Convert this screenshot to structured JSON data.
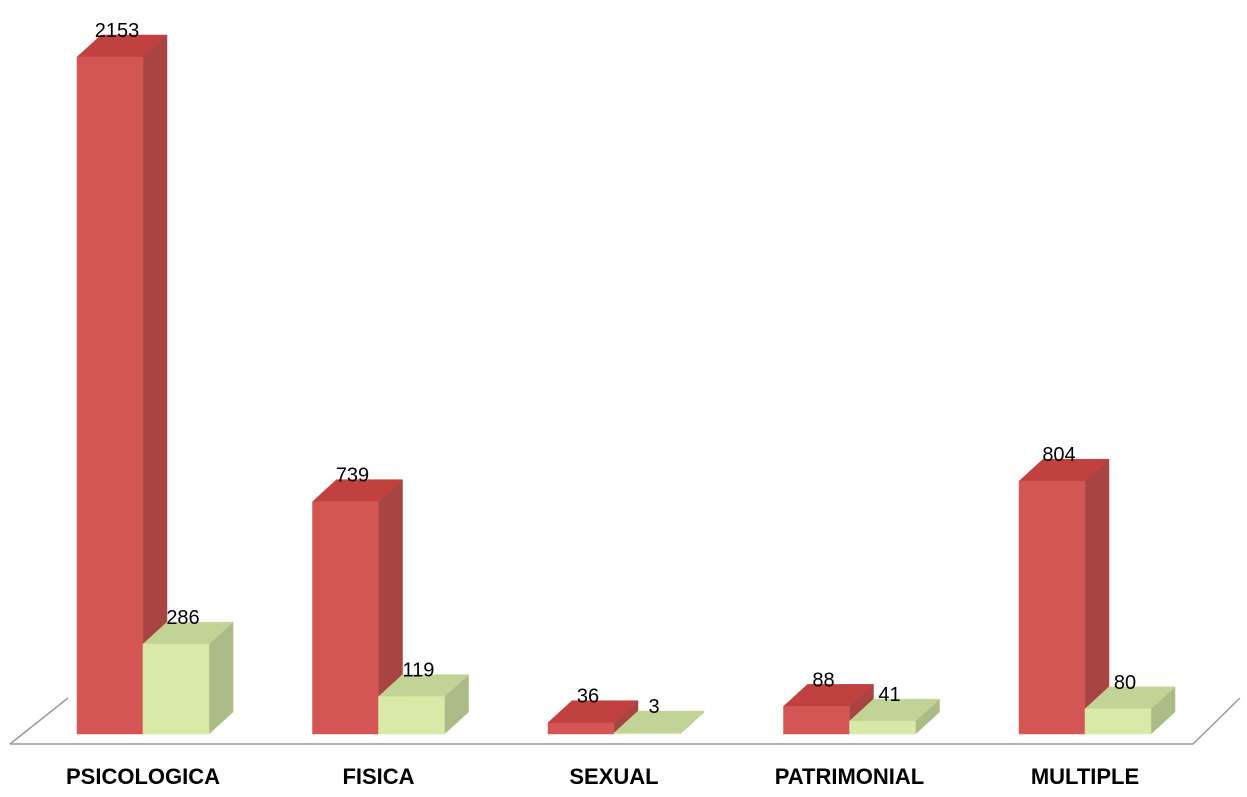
{
  "chart_data": {
    "type": "bar",
    "categories": [
      "PSICOLOGICA",
      "FISICA",
      "SEXUAL",
      "PATRIMONIAL",
      "MULTIPLE"
    ],
    "series": [
      {
        "values": [
          2153,
          739,
          36,
          88,
          804
        ]
      },
      {
        "values": [
          286,
          119,
          3,
          41,
          80
        ]
      }
    ],
    "data_labels": [
      [
        "2153",
        "739",
        "36",
        "88",
        "804"
      ],
      [
        "286",
        "119",
        "3",
        "41",
        "80"
      ]
    ],
    "ylim": [
      0,
      2153
    ],
    "grid": false,
    "legend": "none",
    "style": "3d",
    "colors": {
      "series_front": [
        "#d35654",
        "#d8e9a8"
      ],
      "series_top": [
        "#c0413f",
        "#c2d396"
      ],
      "series_side": [
        "#a84442",
        "#adbb86"
      ],
      "floor_line": "#9a9a9a"
    }
  }
}
